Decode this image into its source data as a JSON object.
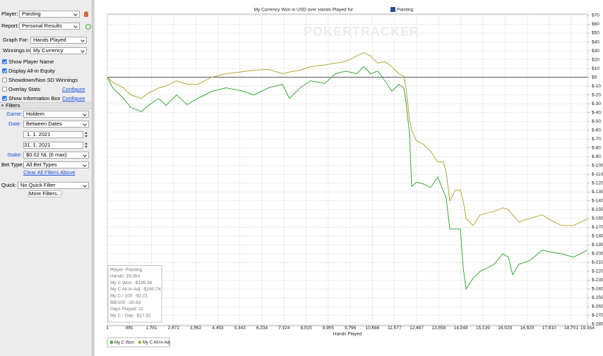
{
  "sidebar": {
    "player": {
      "label": "Player:",
      "value": "Paisting"
    },
    "report": {
      "label": "Report:",
      "value": "Personal Results"
    },
    "graph_for": {
      "label": "Graph For:",
      "value": "Hands Played"
    },
    "winnings_in": {
      "label": "Winnings in:",
      "value": "My Currency"
    },
    "options": [
      {
        "label": "Show Player Name",
        "checked": true
      },
      {
        "label": "Display All-in Equity",
        "checked": true
      },
      {
        "label": "Showdown/Non SD Winnings",
        "checked": false
      },
      {
        "label": "Overlay Stats",
        "checked": false,
        "link": "Configure"
      },
      {
        "label": "Show Information Box",
        "checked": true,
        "link": "Configure"
      }
    ],
    "filters_title": "Filters",
    "game": {
      "label": "Game:",
      "value": "Holdem"
    },
    "date": {
      "label": "Date:",
      "value": "Between Dates",
      "from": "1. 1. 2021",
      "to": "31. 1. 2021"
    },
    "stake": {
      "label": "Stake:",
      "value": "$0.02 NL (6 max)"
    },
    "bet_type": {
      "label": "Bet Type:",
      "value": "All Bet Types"
    },
    "clear": "Clear All Filters Above",
    "quick": {
      "label": "Quick:",
      "value": "No Quick Filter"
    },
    "more": "More Filters..."
  },
  "chart_data": {
    "type": "line",
    "title": "My Currency Won in USD over Hands Played for",
    "title_player": "Paisting",
    "watermark": "POKERTRACKER",
    "x_label": "Hands Played",
    "x": [
      1,
      229,
      656,
      940,
      1367,
      1652,
      2079,
      2363,
      2790,
      3217,
      3644,
      4213,
      4782,
      5351,
      5921,
      6490,
      7059,
      7344,
      7770,
      8197,
      8766,
      9193,
      9620,
      10048,
      10332,
      10617,
      10901,
      11186,
      11470,
      11755,
      11954,
      12039,
      12182,
      12267,
      12466,
      12751,
      13036,
      13320,
      13548,
      13662,
      13804,
      14032,
      14231,
      14345,
      14459,
      14743,
      15028,
      15313,
      15597,
      15939,
      16166,
      16337,
      16593,
      17020,
      17532,
      17874,
      18301,
      18785,
      19354
    ],
    "series": [
      {
        "name": "My C Won",
        "color": "#3aa83a",
        "values": [
          0,
          -12.5,
          -24,
          -34,
          -39,
          -32,
          -24,
          -32,
          -20,
          -31,
          -24,
          -16,
          -12,
          -15,
          -20,
          -12,
          -8,
          -24,
          -12,
          -4,
          -7,
          4,
          7,
          4,
          12,
          4,
          7,
          -4,
          -16,
          -8,
          -12,
          -28,
          -64,
          -124,
          -119,
          -121,
          -125,
          -113,
          -129,
          -137,
          -172,
          -172,
          -172,
          -216,
          -240,
          -228,
          -220,
          -216,
          -212,
          -200,
          -204,
          -224,
          -212,
          -208,
          -196,
          -198,
          -200,
          -204,
          -195.98
        ]
      },
      {
        "name": "My C All-In Adj",
        "color": "#b3a630",
        "values": [
          0,
          -6,
          -12,
          -20,
          -24,
          -18,
          -12,
          -10,
          -4,
          -8,
          -8,
          0,
          4,
          6,
          8,
          9,
          4,
          6,
          8,
          12,
          14,
          16,
          18,
          24,
          28,
          24,
          16,
          18,
          12,
          4,
          1,
          -12,
          -48,
          -60,
          -72,
          -76,
          -84,
          -96,
          -96,
          -108,
          -140,
          -128,
          -128,
          -140,
          -160,
          -168,
          -156,
          -154,
          -152,
          -148,
          -150,
          -156,
          -164,
          -160,
          -156,
          -162,
          -168,
          -168,
          -160.74
        ]
      }
    ],
    "xlim": [
      1,
      19354
    ],
    "xticks": [
      1,
      891,
      {
        "value": 1781,
        "label": "1,781"
      },
      {
        "value": 2672,
        "label": "2,672"
      },
      {
        "value": 3562,
        "label": "3,562"
      },
      {
        "value": 4453,
        "label": "4,453"
      },
      {
        "value": 5343,
        "label": "5,343"
      },
      {
        "value": 6234,
        "label": "6,234"
      },
      {
        "value": 7124,
        "label": "7,124"
      },
      {
        "value": 8015,
        "label": "8,015"
      },
      {
        "value": 8905,
        "label": "8,905"
      },
      {
        "value": 9796,
        "label": "9,796"
      },
      {
        "value": 10686,
        "label": "10,686"
      },
      {
        "value": 11577,
        "label": "11,577"
      },
      {
        "value": 12467,
        "label": "12,467"
      },
      {
        "value": 13358,
        "label": "13,358"
      },
      {
        "value": 14248,
        "label": "14,248"
      },
      {
        "value": 15139,
        "label": "15,139"
      },
      {
        "value": 16029,
        "label": "16,029"
      },
      {
        "value": 16920,
        "label": "16,920"
      },
      {
        "value": 17810,
        "label": "17,810"
      },
      {
        "value": 18701,
        "label": "18,701"
      },
      {
        "value": 19354,
        "label": "19,354"
      }
    ],
    "ylim": [
      -280,
      70
    ],
    "yticks": [
      {
        "value": 70,
        "label": "$70"
      },
      {
        "value": 60,
        "label": "$60"
      },
      {
        "value": 50,
        "label": "$50"
      },
      {
        "value": 40,
        "label": "$40"
      },
      {
        "value": 30,
        "label": "$30"
      },
      {
        "value": 20,
        "label": "$20"
      },
      {
        "value": 10,
        "label": "$10"
      },
      {
        "value": 0,
        "label": "$0"
      },
      {
        "value": -10,
        "label": "$-10"
      },
      {
        "value": -20,
        "label": "$-20"
      },
      {
        "value": -30,
        "label": "$-30"
      },
      {
        "value": -40,
        "label": "$-40"
      },
      {
        "value": -50,
        "label": "$-50"
      },
      {
        "value": -60,
        "label": "$-60"
      },
      {
        "value": -70,
        "label": "$-70"
      },
      {
        "value": -80,
        "label": "$-80"
      },
      {
        "value": -90,
        "label": "$-90"
      },
      {
        "value": -100,
        "label": "$-100"
      },
      {
        "value": -110,
        "label": "$-110"
      },
      {
        "value": -120,
        "label": "$-120"
      },
      {
        "value": -130,
        "label": "$-130"
      },
      {
        "value": -140,
        "label": "$-140"
      },
      {
        "value": -150,
        "label": "$-150"
      },
      {
        "value": -160,
        "label": "$-160"
      },
      {
        "value": -170,
        "label": "$-170"
      },
      {
        "value": -180,
        "label": "$-180"
      },
      {
        "value": -190,
        "label": "$-190"
      },
      {
        "value": -200,
        "label": "$-200"
      },
      {
        "value": -210,
        "label": "$-210"
      },
      {
        "value": -220,
        "label": "$-220"
      },
      {
        "value": -230,
        "label": "$-230"
      },
      {
        "value": -240,
        "label": "$-240"
      },
      {
        "value": -250,
        "label": "$-250"
      },
      {
        "value": -260,
        "label": "$-260"
      },
      {
        "value": -270,
        "label": "$-270"
      },
      {
        "value": -280,
        "label": "$-280"
      }
    ],
    "grid": true,
    "y_axis_side": "right",
    "legend": "bottom-left",
    "info_box": [
      "Player: Paisting",
      "Hands: 19,354",
      "My C Won: -$195.98",
      "My C All-In Adj: -$160.74",
      "My C / 100: -$1.01",
      "BB/100: -50.63",
      "Days Played: 11",
      "My C / Day: -$17.82"
    ]
  }
}
